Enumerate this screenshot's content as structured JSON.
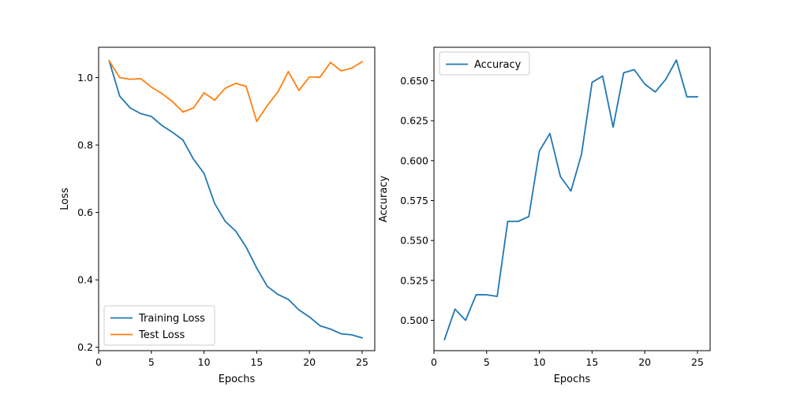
{
  "chart_data": [
    {
      "type": "line",
      "title": "",
      "xlabel": "Epochs",
      "ylabel": "Loss",
      "xlim": [
        0,
        26.2
      ],
      "ylim": [
        0.19,
        1.09
      ],
      "xticks": [
        0,
        5,
        10,
        15,
        20,
        25
      ],
      "yticks": [
        0.2,
        0.4,
        0.6,
        0.8,
        1.0
      ],
      "ytick_labels": [
        "0.2",
        "0.4",
        "0.6",
        "0.8",
        "1.0"
      ],
      "grid": false,
      "legend": "lower-left",
      "x": [
        1,
        2,
        3,
        4,
        5,
        6,
        7,
        8,
        9,
        10,
        11,
        12,
        13,
        14,
        15,
        16,
        17,
        18,
        19,
        20,
        21,
        22,
        23,
        24,
        25
      ],
      "series": [
        {
          "name": "Training Loss",
          "color": "#1f77b4",
          "values": [
            1.05,
            0.945,
            0.91,
            0.893,
            0.885,
            0.858,
            0.838,
            0.815,
            0.758,
            0.716,
            0.627,
            0.574,
            0.545,
            0.497,
            0.435,
            0.381,
            0.357,
            0.342,
            0.311,
            0.29,
            0.264,
            0.254,
            0.24,
            0.237,
            0.228
          ]
        },
        {
          "name": "Test Loss",
          "color": "#ff7f0e",
          "values": [
            1.05,
            1.0,
            0.995,
            0.997,
            0.972,
            0.953,
            0.929,
            0.898,
            0.91,
            0.955,
            0.933,
            0.968,
            0.983,
            0.974,
            0.87,
            0.917,
            0.957,
            1.018,
            0.962,
            1.002,
            1.001,
            1.045,
            1.02,
            1.028,
            1.047
          ]
        }
      ]
    },
    {
      "type": "line",
      "title": "",
      "xlabel": "Epochs",
      "ylabel": "Accuracy",
      "xlim": [
        0,
        26.2
      ],
      "ylim": [
        0.481,
        0.671
      ],
      "xticks": [
        0,
        5,
        10,
        15,
        20,
        25
      ],
      "yticks": [
        0.5,
        0.525,
        0.55,
        0.575,
        0.6,
        0.625,
        0.65
      ],
      "ytick_labels": [
        "0.500",
        "0.525",
        "0.550",
        "0.575",
        "0.600",
        "0.625",
        "0.650"
      ],
      "grid": false,
      "legend": "upper-left",
      "x": [
        1,
        2,
        3,
        4,
        5,
        6,
        7,
        8,
        9,
        10,
        11,
        12,
        13,
        14,
        15,
        16,
        17,
        18,
        19,
        20,
        21,
        22,
        23,
        24,
        25
      ],
      "series": [
        {
          "name": "Accuracy",
          "color": "#1f77b4",
          "values": [
            0.488,
            0.507,
            0.5,
            0.516,
            0.516,
            0.515,
            0.562,
            0.562,
            0.565,
            0.606,
            0.617,
            0.59,
            0.581,
            0.604,
            0.649,
            0.653,
            0.621,
            0.655,
            0.657,
            0.648,
            0.643,
            0.651,
            0.663,
            0.64,
            0.64
          ]
        }
      ]
    }
  ]
}
